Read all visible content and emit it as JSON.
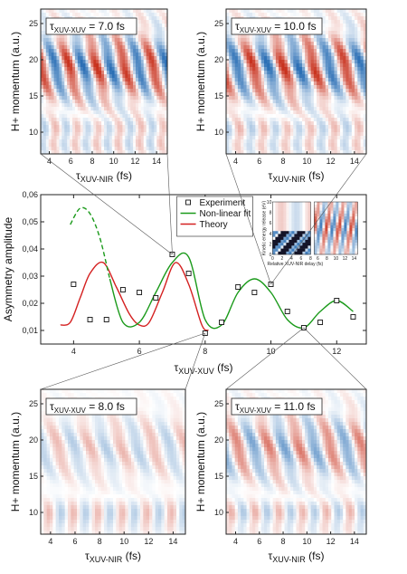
{
  "colors": {
    "experiment": "#111111",
    "nonlinear_fit": "#1a9a1a",
    "theory": "#d42020",
    "heat_red": "#c8321e",
    "heat_blue": "#2b6fb5"
  },
  "chart_data": [
    {
      "type": "heatmap",
      "panel": "top-left",
      "annotation": "τXUV-XUV = 7.0 fs",
      "xlabel": "τXUV-NIR (fs)",
      "ylabel": "H+ momentum (a.u.)",
      "xticks": [
        4,
        6,
        8,
        10,
        12,
        14
      ],
      "yticks": [
        10,
        15,
        20,
        25
      ],
      "xlim": [
        3.2,
        15.0
      ],
      "ylim": [
        7,
        27
      ],
      "intensity": "strong"
    },
    {
      "type": "heatmap",
      "panel": "top-right",
      "annotation": "τXUV-XUV = 10.0 fs",
      "xlabel": "τXUV-NIR (fs)",
      "ylabel": "H+ momentum (a.u.)",
      "xticks": [
        4,
        6,
        8,
        10,
        12,
        14
      ],
      "yticks": [
        10,
        15,
        20,
        25
      ],
      "xlim": [
        3.2,
        15.0
      ],
      "ylim": [
        7,
        27
      ],
      "intensity": "strong"
    },
    {
      "type": "line",
      "panel": "middle",
      "xlabel": "τXUV-XUV (fs)",
      "ylabel": "Asymmetry amplitude",
      "xlim": [
        3.0,
        12.9
      ],
      "ylim": [
        0.005,
        0.06
      ],
      "xticks": [
        4,
        6,
        8,
        10,
        12
      ],
      "yticks": [
        0.01,
        0.02,
        0.03,
        0.04,
        0.05,
        0.06
      ],
      "ytick_labels": [
        "0,01",
        "0,02",
        "0,03",
        "0,04",
        "0,05",
        "0,06"
      ],
      "legend": [
        "Experiment",
        "Non-linear fit",
        "Theory"
      ],
      "legend_position": "top-center",
      "experiment": {
        "x": [
          4.0,
          4.5,
          5.0,
          5.5,
          6.0,
          6.5,
          7.0,
          7.5,
          8.0,
          8.5,
          9.0,
          9.5,
          10.0,
          10.5,
          11.0,
          11.5,
          12.0,
          12.5
        ],
        "y": [
          0.027,
          0.014,
          0.014,
          0.025,
          0.024,
          0.022,
          0.038,
          0.031,
          0.009,
          0.013,
          0.026,
          0.024,
          0.027,
          0.017,
          0.011,
          0.013,
          0.021,
          0.015
        ]
      },
      "nonlinear_fit": {
        "x": [
          3.9,
          4.2,
          4.5,
          4.8,
          5.1,
          5.5,
          6.0,
          6.5,
          7.0,
          7.5,
          8.0,
          8.5,
          9.0,
          9.5,
          10.0,
          10.5,
          11.0,
          11.5,
          12.0,
          12.5
        ],
        "y": [
          0.049,
          0.055,
          0.053,
          0.044,
          0.029,
          0.013,
          0.013,
          0.024,
          0.035,
          0.037,
          0.014,
          0.012,
          0.024,
          0.029,
          0.024,
          0.014,
          0.011,
          0.017,
          0.021,
          0.017
        ],
        "dashed_until_x": 5.1
      },
      "theory": {
        "x": [
          3.6,
          3.9,
          4.2,
          4.5,
          4.9,
          5.3,
          5.7,
          6.0,
          6.3,
          6.7,
          7.1,
          7.5,
          7.9,
          8.1
        ],
        "y": [
          0.012,
          0.013,
          0.022,
          0.031,
          0.035,
          0.026,
          0.016,
          0.012,
          0.013,
          0.024,
          0.035,
          0.027,
          0.012,
          0.01
        ]
      },
      "inset": {
        "ylabel": "Kinetic energy release (eV)",
        "xlabel": "Relative XUV-NIR delay (fs)",
        "yticks": [
          0,
          2,
          4,
          6,
          8,
          10
        ],
        "xticks": [
          0,
          2,
          4,
          6,
          8
        ],
        "right_xticks": [
          6,
          8,
          10,
          12,
          14
        ]
      }
    },
    {
      "type": "heatmap",
      "panel": "bottom-left",
      "annotation": "τXUV-XUV = 8.0 fs",
      "xlabel": "τXUV-NIR (fs)",
      "ylabel": "H+ momentum (a.u.)",
      "xticks": [
        4,
        6,
        8,
        10,
        12,
        14
      ],
      "yticks": [
        10,
        15,
        20,
        25
      ],
      "xlim": [
        3.2,
        15.0
      ],
      "ylim": [
        7,
        27
      ],
      "intensity": "weak"
    },
    {
      "type": "heatmap",
      "panel": "bottom-right",
      "annotation": "τXUV-XUV = 11.0 fs",
      "xlabel": "τXUV-NIR (fs)",
      "ylabel": "H+ momentum (a.u.)",
      "xticks": [
        4,
        6,
        8,
        10,
        12,
        14
      ],
      "yticks": [
        10,
        15,
        20,
        25
      ],
      "xlim": [
        3.2,
        15.0
      ],
      "ylim": [
        7,
        27
      ],
      "intensity": "medium"
    }
  ]
}
